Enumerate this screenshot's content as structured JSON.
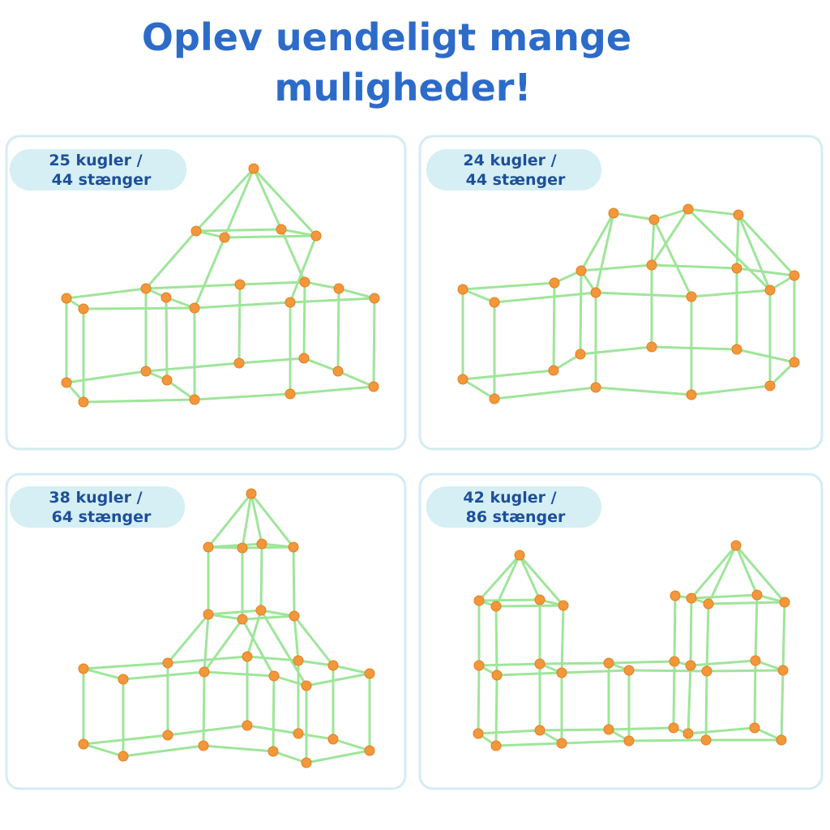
{
  "title": [
    "Oplev uendeligt mange",
    "muligheder!"
  ],
  "panels": [
    {
      "label": [
        "25 kugler /",
        "44 stænger"
      ]
    },
    {
      "label": [
        "24 kugler /",
        "44 stænger"
      ]
    },
    {
      "label": [
        "38 kugler /",
        "64 stænger"
      ]
    },
    {
      "label": [
        "42 kugler /",
        "86 stænger"
      ]
    }
  ]
}
